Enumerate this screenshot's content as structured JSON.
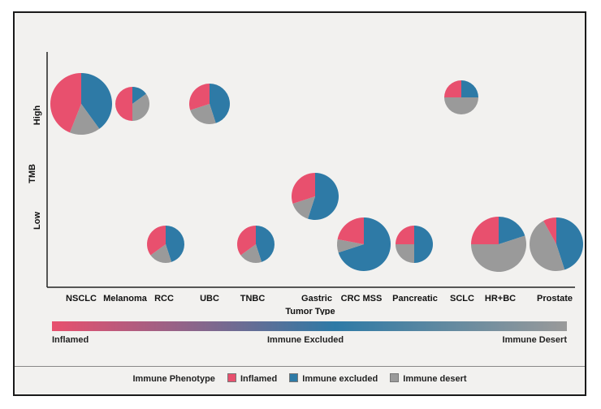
{
  "colors": {
    "inflamed": "#e8506e",
    "immune_excluded": "#2e7aa6",
    "immune_desert": "#9a9a9a"
  },
  "legend": {
    "title": "Immune Phenotype",
    "items": [
      "Inflamed",
      "Immune excluded",
      "Immune desert"
    ]
  },
  "gradient": {
    "left_label": "Inflamed",
    "mid_label": "Immune Excluded",
    "right_label": "Immune Desert"
  },
  "chart_data": {
    "type": "scatter",
    "subtype": "pie-bubble",
    "xlabel": "Tumor Type",
    "ylabel": "TMB",
    "categories": [
      "NSCLC",
      "Melanoma",
      "RCC",
      "UBC",
      "TNBC",
      "Gastric",
      "CRC MSS",
      "Pancreatic",
      "SCLC",
      "HR+BC",
      "Prostate"
    ],
    "y_levels": [
      "Low",
      "High"
    ],
    "series": [
      {
        "category": "NSCLC",
        "tmb": "High",
        "size": 38,
        "shares": {
          "inflamed": 0.44,
          "immune_excluded": 0.4,
          "immune_desert": 0.16
        }
      },
      {
        "category": "Melanoma",
        "tmb": "High",
        "size": 21,
        "shares": {
          "inflamed": 0.5,
          "immune_excluded": 0.15,
          "immune_desert": 0.35
        }
      },
      {
        "category": "RCC",
        "tmb": "Low",
        "size": 23,
        "shares": {
          "inflamed": 0.35,
          "immune_excluded": 0.45,
          "immune_desert": 0.2
        }
      },
      {
        "category": "UBC",
        "tmb": "High",
        "size": 25,
        "shares": {
          "inflamed": 0.3,
          "immune_excluded": 0.45,
          "immune_desert": 0.25
        }
      },
      {
        "category": "TNBC",
        "tmb": "Low",
        "size": 23,
        "shares": {
          "inflamed": 0.35,
          "immune_excluded": 0.45,
          "immune_desert": 0.2
        }
      },
      {
        "category": "Gastric",
        "tmb": "Low",
        "size": 29,
        "shares": {
          "inflamed": 0.3,
          "immune_excluded": 0.55,
          "immune_desert": 0.15
        }
      },
      {
        "category": "CRC MSS",
        "tmb": "Low",
        "size": 33,
        "shares": {
          "inflamed": 0.22,
          "immune_excluded": 0.7,
          "immune_desert": 0.08
        }
      },
      {
        "category": "Pancreatic",
        "tmb": "Low",
        "size": 23,
        "shares": {
          "inflamed": 0.25,
          "immune_excluded": 0.5,
          "immune_desert": 0.25
        }
      },
      {
        "category": "SCLC",
        "tmb": "High",
        "size": 21,
        "shares": {
          "inflamed": 0.25,
          "immune_excluded": 0.25,
          "immune_desert": 0.5
        }
      },
      {
        "category": "HR+BC",
        "tmb": "Low",
        "size": 34,
        "shares": {
          "inflamed": 0.25,
          "immune_excluded": 0.2,
          "immune_desert": 0.55
        }
      },
      {
        "category": "Prostate",
        "tmb": "Low",
        "size": 33,
        "shares": {
          "inflamed": 0.08,
          "immune_excluded": 0.45,
          "immune_desert": 0.47
        }
      }
    ]
  }
}
